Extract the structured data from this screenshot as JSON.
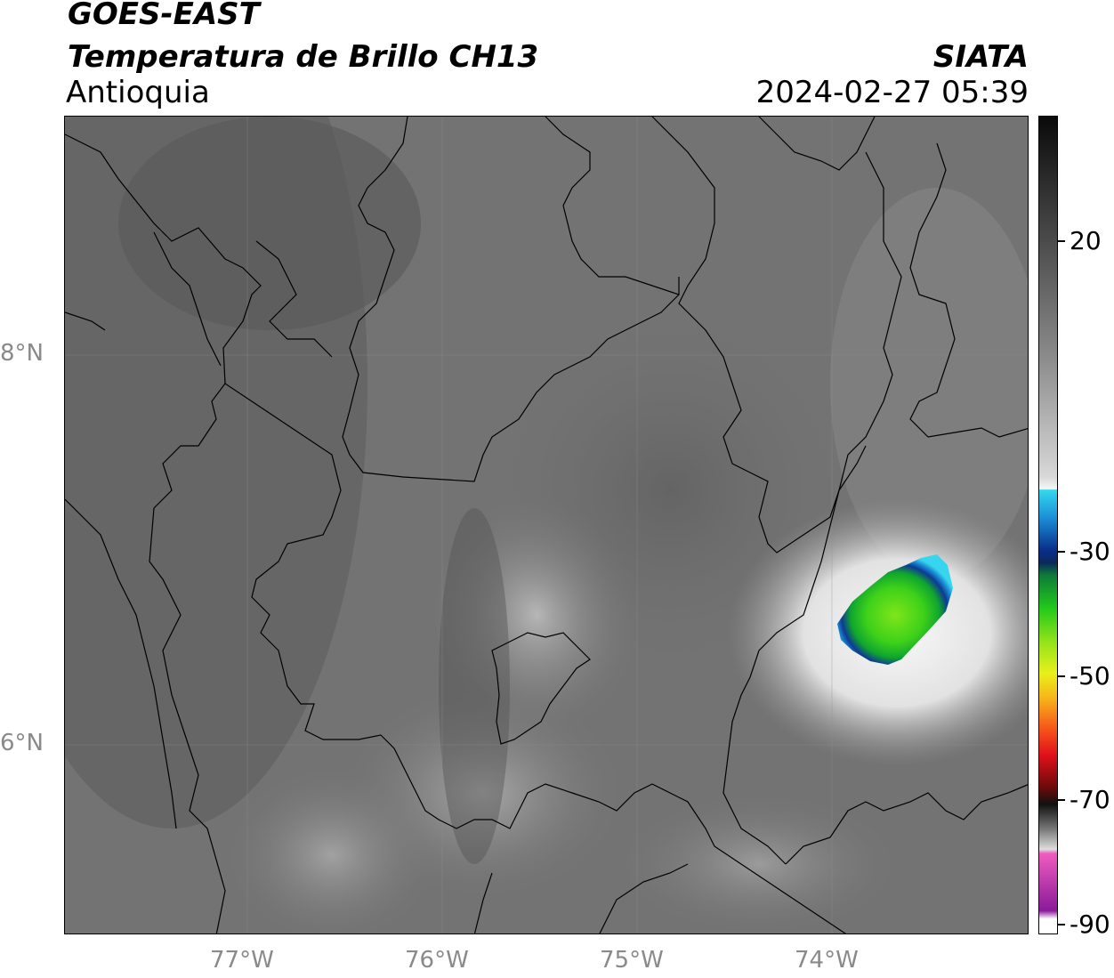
{
  "header": {
    "satellite": "GOES-EAST",
    "product": "Temperatura de Brillo CH13",
    "region": "Antioquia",
    "agency": "SIATA",
    "timestamp": "2024-02-27 05:39"
  },
  "axes": {
    "lat_labels": [
      "8°N",
      "6°N"
    ],
    "lon_labels": [
      "77°W",
      "76°W",
      "75°W",
      "74°W"
    ]
  },
  "colorbar": {
    "tick_labels": [
      "20",
      "-30",
      "-50",
      "-70",
      "-90"
    ]
  }
}
